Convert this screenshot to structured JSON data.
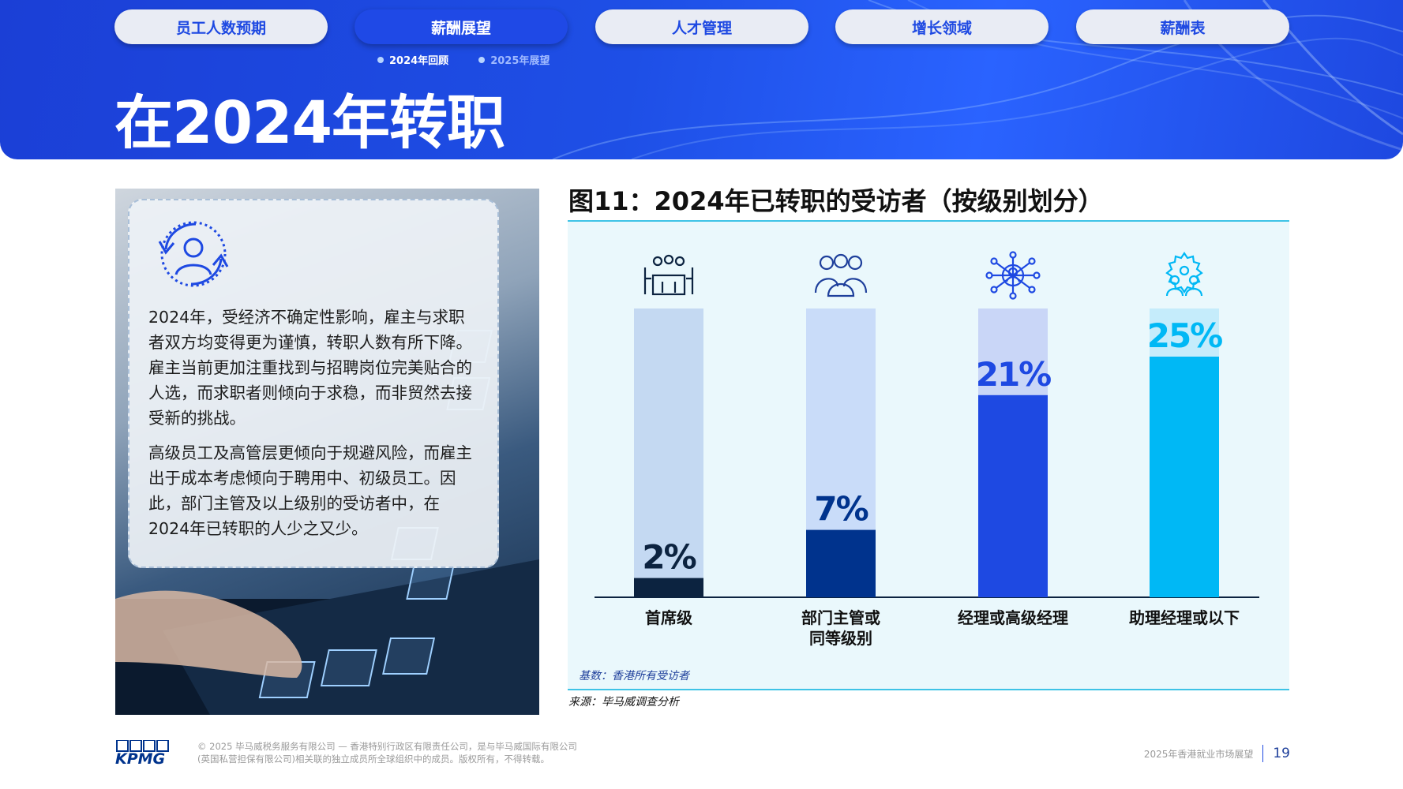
{
  "nav": {
    "tabs": [
      {
        "label": "员工人数预期",
        "active": false
      },
      {
        "label": "薪酬展望",
        "active": true
      },
      {
        "label": "人才管理",
        "active": false
      },
      {
        "label": "增长领域",
        "active": false
      },
      {
        "label": "薪酬表",
        "active": false
      }
    ],
    "subtabs": [
      {
        "label": "2024年回顾",
        "active": true
      },
      {
        "label": "2025年展望",
        "active": false
      }
    ]
  },
  "page_title": "在2024年转职",
  "card": {
    "icon": "people-exchange-icon",
    "paragraphs": [
      "2024年，受经济不确定性影响，雇主与求职者双方均变得更为谨慎，转职人数有所下降。雇主当前更加注重找到与招聘岗位完美贴合的人选，而求职者则倾向于求稳，而非贸然去接受新的挑战。",
      "高级员工及高管层更倾向于规避风险，而雇主出于成本考虑倾向于聘用中、初级员工。因此，部门主管及以上级别的受访者中，在2024年已转职的人少之又少。"
    ]
  },
  "chart_data": {
    "type": "bar",
    "title": "图11：2024年已转职的受访者（按级别划分）",
    "categories": [
      "首席级",
      "部门主管或同等级别",
      "经理或高级经理",
      "助理经理或以下"
    ],
    "category_lines": [
      [
        "首席级"
      ],
      [
        "部门主管或",
        "同等级别"
      ],
      [
        "经理或高级经理"
      ],
      [
        "助理经理或以下"
      ]
    ],
    "values": [
      2,
      7,
      21,
      25
    ],
    "value_labels": [
      "2%",
      "7%",
      "21%",
      "25%"
    ],
    "ylim": [
      0,
      30
    ],
    "bar_colors": [
      "#0c2340",
      "#00338d",
      "#1e49e2",
      "#00b8f5"
    ],
    "track_colors": [
      "#c4d9f2",
      "#c9dcf9",
      "#c9d6f7",
      "#c5ecfb"
    ],
    "label_colors": [
      "#0c2340",
      "#00338d",
      "#1e49e2",
      "#00b8f5"
    ],
    "icons": [
      "meeting-table-icon",
      "team-group-icon",
      "network-person-icon",
      "gear-team-icon"
    ],
    "base_note": "基数：香港所有受访者",
    "source": "来源：毕马威调查分析"
  },
  "footer": {
    "copyright_lines": [
      "© 2025 毕马威税务服务有限公司 — 香港特别行政区有限责任公司，是与毕马威国际有限公司",
      "(英国私营担保有限公司)相关联的独立成员所全球组织中的成员。版权所有，不得转载。"
    ],
    "report_title": "2025年香港就业市场展望",
    "page_number": "19",
    "logo_text": "KPMG"
  },
  "colors": {
    "brand_blue": "#1e49e2",
    "kpmg_blue": "#00338d",
    "accent_cyan": "#3ec3e6"
  }
}
